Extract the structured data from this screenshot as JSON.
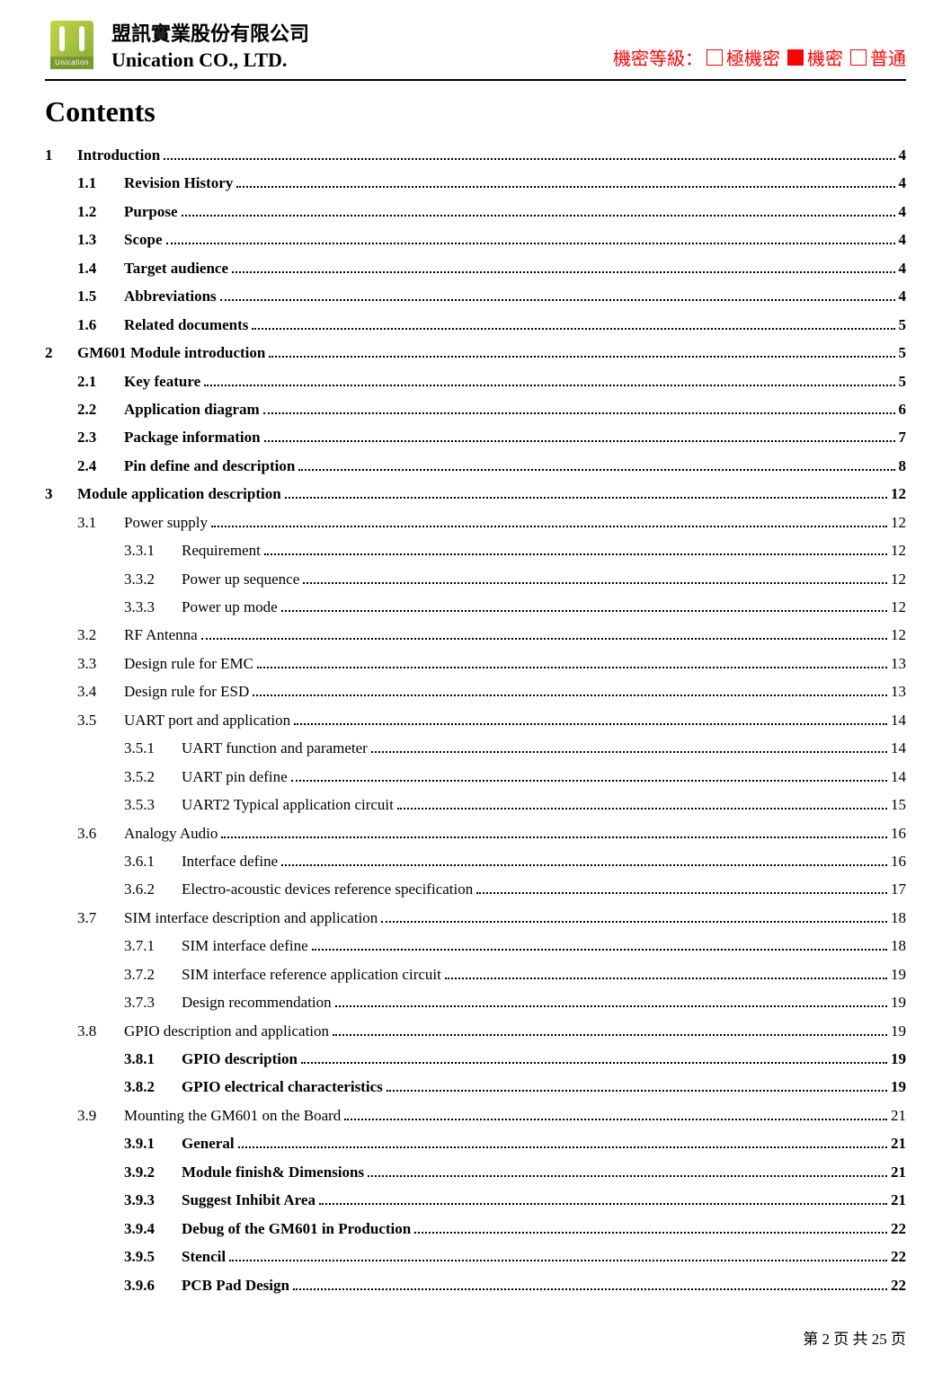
{
  "header": {
    "logo_text": "Unication",
    "company_cn": "盟訊實業股份有限公司",
    "company_en": "Unication CO., LTD.",
    "classification_label": "機密等級：",
    "levels": [
      {
        "text": "極機密",
        "filled": false
      },
      {
        "text": "機密",
        "filled": true
      },
      {
        "text": "普通",
        "filled": false
      }
    ],
    "classification_color": "#ff0000"
  },
  "contents_title": "Contents",
  "toc": [
    {
      "lvl": 1,
      "num": "1",
      "label": "Introduction",
      "page": "4",
      "bold": true
    },
    {
      "lvl": 2,
      "num": "1.1",
      "label": "Revision History",
      "page": "4",
      "bold": true
    },
    {
      "lvl": 2,
      "num": "1.2",
      "label": "Purpose",
      "page": "4",
      "bold": true
    },
    {
      "lvl": 2,
      "num": "1.3",
      "label": "Scope",
      "page": "4",
      "bold": true
    },
    {
      "lvl": 2,
      "num": "1.4",
      "label": "Target audience",
      "page": "4",
      "bold": true
    },
    {
      "lvl": 2,
      "num": "1.5",
      "label": "Abbreviations",
      "page": "4",
      "bold": true
    },
    {
      "lvl": 2,
      "num": "1.6",
      "label": "Related documents",
      "page": "5",
      "bold": true
    },
    {
      "lvl": 1,
      "num": "2",
      "label": "GM601 Module introduction",
      "page": "5",
      "bold": true
    },
    {
      "lvl": 2,
      "num": "2.1",
      "label": "Key feature",
      "page": "5",
      "bold": true
    },
    {
      "lvl": 2,
      "num": "2.2",
      "label": "Application diagram",
      "page": "6",
      "bold": true
    },
    {
      "lvl": 2,
      "num": "2.3",
      "label": "Package information",
      "page": "7",
      "bold": true
    },
    {
      "lvl": 2,
      "num": "2.4",
      "label": "Pin define and description",
      "page": "8",
      "bold": true
    },
    {
      "lvl": 1,
      "num": "3",
      "label": "Module application description",
      "page": "12",
      "bold": true
    },
    {
      "lvl": 2,
      "num": "3.1",
      "label": "Power supply",
      "page": "12",
      "bold": false
    },
    {
      "lvl": 3,
      "num": "3.3.1",
      "label": "Requirement",
      "page": "12",
      "bold": false
    },
    {
      "lvl": 3,
      "num": "3.3.2",
      "label": "Power up sequence",
      "page": "12",
      "bold": false
    },
    {
      "lvl": 3,
      "num": "3.3.3",
      "label": "Power up mode",
      "page": "12",
      "bold": false
    },
    {
      "lvl": 2,
      "num": "3.2",
      "label": "RF Antenna",
      "page": "12",
      "bold": false
    },
    {
      "lvl": 2,
      "num": "3.3",
      "label": "Design rule for EMC",
      "page": "13",
      "bold": false
    },
    {
      "lvl": 2,
      "num": "3.4",
      "label": "Design rule for ESD",
      "page": "13",
      "bold": false
    },
    {
      "lvl": 2,
      "num": "3.5",
      "label": "UART port and application",
      "page": "14",
      "bold": false
    },
    {
      "lvl": 3,
      "num": "3.5.1",
      "label": "UART function and parameter",
      "page": "14",
      "bold": false
    },
    {
      "lvl": 3,
      "num": "3.5.2",
      "label": "UART pin define",
      "page": "14",
      "bold": false
    },
    {
      "lvl": 3,
      "num": "3.5.3",
      "label": "UART2 Typical application circuit",
      "page": "15",
      "bold": false
    },
    {
      "lvl": 2,
      "num": "3.6",
      "label": "Analogy Audio",
      "page": "16",
      "bold": false
    },
    {
      "lvl": 3,
      "num": "3.6.1",
      "label": "Interface define",
      "page": "16",
      "bold": false
    },
    {
      "lvl": 3,
      "num": "3.6.2",
      "label": "Electro-acoustic devices reference specification",
      "page": "17",
      "bold": false
    },
    {
      "lvl": 2,
      "num": "3.7",
      "label": "SIM interface description and application",
      "page": "18",
      "bold": false
    },
    {
      "lvl": 3,
      "num": "3.7.1",
      "label": "SIM interface define",
      "page": "18",
      "bold": false
    },
    {
      "lvl": 3,
      "num": "3.7.2",
      "label": "SIM interface reference application circuit",
      "page": "19",
      "bold": false
    },
    {
      "lvl": 3,
      "num": "3.7.3",
      "label": "Design recommendation",
      "page": "19",
      "bold": false
    },
    {
      "lvl": 2,
      "num": "3.8",
      "label": "GPIO description and application",
      "page": "19",
      "bold": false
    },
    {
      "lvl": 3,
      "num": "3.8.1",
      "label": "GPIO description",
      "page": "19",
      "bold": true
    },
    {
      "lvl": 3,
      "num": "3.8.2",
      "label": "GPIO electrical characteristics",
      "page": "19",
      "bold": true
    },
    {
      "lvl": 2,
      "num": "3.9",
      "label": "Mounting the GM601 on the Board",
      "page": "21",
      "bold": false
    },
    {
      "lvl": 3,
      "num": "3.9.1",
      "label": "General",
      "page": "21",
      "bold": true
    },
    {
      "lvl": 3,
      "num": "3.9.2",
      "label": "Module finish& Dimensions",
      "page": "21",
      "bold": true
    },
    {
      "lvl": 3,
      "num": "3.9.3",
      "label": "Suggest Inhibit Area",
      "page": "21",
      "bold": true
    },
    {
      "lvl": 3,
      "num": "3.9.4",
      "label": "Debug of the GM601 in Production",
      "page": "22",
      "bold": true
    },
    {
      "lvl": 3,
      "num": "3.9.5",
      "label": "Stencil",
      "page": "22",
      "bold": true
    },
    {
      "lvl": 3,
      "num": "3.9.6",
      "label": "PCB Pad Design",
      "page": "22",
      "bold": true
    }
  ],
  "footer": {
    "prefix": "第",
    "page_current": "2",
    "mid1": "页 共",
    "page_total": "25",
    "suffix": "页"
  }
}
